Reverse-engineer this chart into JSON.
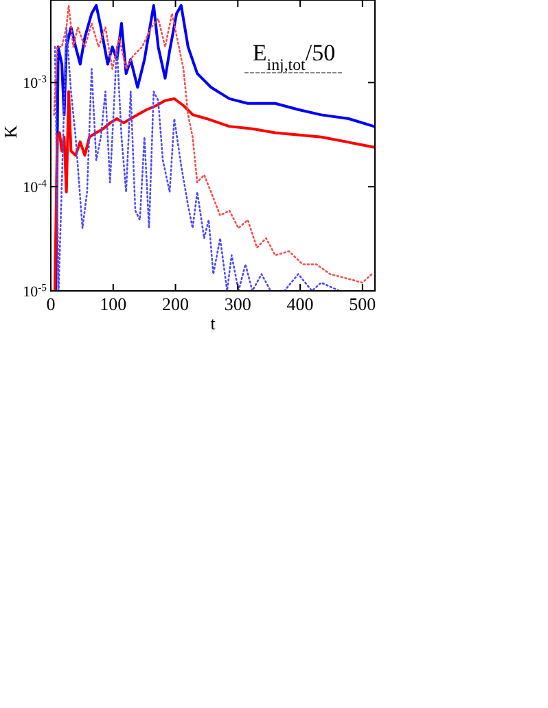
{
  "chart_data": {
    "type": "line",
    "xlabel": "t",
    "ylabel": "K",
    "log": "y",
    "xlim": [
      0,
      520
    ],
    "ylim": [
      1e-05,
      0.0062
    ],
    "xticks": [
      0,
      100,
      200,
      300,
      400,
      500
    ],
    "yticks": [
      {
        "value": 1e-05,
        "label": "10$^{-5}$"
      },
      {
        "value": 0.0001,
        "label": "10$^{-4}$"
      },
      {
        "value": 0.001,
        "label": "10$^{-3}$"
      }
    ],
    "grid": false,
    "annotations": [
      "E$_{inj,tot}$/50"
    ],
    "series": [
      {
        "color": "#0000ff",
        "line_style": "solid",
        "x": [
          8.1,
          11.8,
          17.7,
          21.4,
          25,
          32.4,
          39.8,
          47.1,
          54.5,
          65.5,
          72.9,
          80.3,
          91.3,
          98.7,
          106,
          113.4,
          120.8,
          128.1,
          139.2,
          150.2,
          165,
          172.3,
          183.4,
          190.7,
          201.8,
          209.1,
          220.2,
          234.9,
          257,
          286.5,
          315.9,
          360.1,
          396.9,
          433.7,
          477.9,
          518
        ],
        "values": [
          1e-05,
          0.0022,
          0.0015,
          0.00049,
          0.0022,
          0.0034,
          0.0022,
          0.0015,
          0.0027,
          0.0046,
          0.0055,
          0.0034,
          0.0015,
          0.0022,
          0.00166,
          0.0037,
          0.00122,
          0.00166,
          0.0009,
          0.00166,
          0.0055,
          0.0022,
          0.0011,
          0.00203,
          0.0046,
          0.0055,
          0.0022,
          0.00122,
          0.0009,
          0.0007,
          0.00063,
          0.00063,
          0.00055,
          0.00049,
          0.00045,
          0.00038
        ]
      },
      {
        "color": "#ff0000",
        "line_style": "solid",
        "x": [
          6.6,
          10.3,
          14,
          17.7,
          21.4,
          25,
          28.7,
          32.4,
          39.8,
          47.1,
          54.5,
          61.9,
          72.9,
          84,
          95,
          106,
          117,
          128,
          139,
          154,
          169,
          183,
          198,
          213,
          228,
          250,
          286,
          323,
          360,
          434,
          518
        ],
        "values": [
          1e-05,
          0.0003,
          0.00033,
          0.00022,
          0.0003,
          8.9e-05,
          0.00082,
          0.00022,
          0.0002,
          0.00027,
          0.0002,
          0.0003,
          0.00033,
          0.00036,
          0.00041,
          0.00045,
          0.00041,
          0.00045,
          0.00049,
          0.00055,
          0.0006,
          0.00067,
          0.0007,
          0.0006,
          0.00049,
          0.00045,
          0.00038,
          0.00036,
          0.00033,
          0.0003,
          0.00024
        ]
      },
      {
        "color": "#4a4aff",
        "line_style": "dotted",
        "x": [
          6.6,
          12.5,
          17.7,
          25,
          32.4,
          39.8,
          50.8,
          58.2,
          65.5,
          72.9,
          80.3,
          87.6,
          95,
          106,
          113.4,
          120.8,
          128.1,
          135.5,
          142.9,
          150.2,
          157.6,
          165,
          172.3,
          179.7,
          190.7,
          198.1,
          209.1,
          220.2,
          227.5,
          234.9,
          246,
          253.3,
          260.7,
          271.7,
          282.8,
          290.1,
          301.2,
          312.2,
          323.3,
          338,
          352.7,
          374.8,
          396.9,
          419,
          433.7,
          463.2
        ],
        "values": [
          0.0022,
          1e-05,
          0.00011,
          0.0034,
          0.00082,
          0.0003,
          4e-05,
          8.9e-05,
          0.00135,
          0.00018,
          0.0003,
          0.00082,
          0.00011,
          0.0022,
          0.0003,
          8.9e-05,
          0.00082,
          5.9e-05,
          4.8e-05,
          0.0003,
          4e-05,
          0.00082,
          0.00067,
          0.00018,
          8.9e-05,
          0.00045,
          0.00016,
          6.6e-05,
          4e-05,
          8.9e-05,
          3.2e-05,
          4.8e-05,
          1.45e-05,
          3.2e-05,
          1e-05,
          2.2e-05,
          1e-05,
          1.8e-05,
          1e-05,
          1.45e-05,
          1e-05,
          1e-05,
          1.45e-05,
          1e-05,
          1.2e-05,
          1e-05
        ]
      },
      {
        "color": "#ff4a4a",
        "line_style": "dotted",
        "x": [
          5.2,
          10.3,
          17.7,
          25,
          28.7,
          36,
          43.4,
          54.5,
          65.5,
          76.6,
          87.6,
          98.7,
          109.7,
          120.8,
          131.8,
          146.5,
          161.3,
          172.3,
          183.4,
          194.4,
          205.5,
          212.8,
          220.2,
          227.5,
          234.9,
          246,
          257,
          271.7,
          286.5,
          301,
          316,
          330.6,
          345.4,
          360,
          382,
          404,
          426,
          448,
          478,
          500,
          515,
          518
        ],
        "values": [
          0.00049,
          0.0022,
          0.0022,
          0.0034,
          0.0055,
          0.0022,
          0.0034,
          0.0022,
          0.0037,
          0.0022,
          0.0034,
          0.00135,
          0.0027,
          0.00135,
          0.0018,
          0.0022,
          0.0034,
          0.0041,
          0.0022,
          0.0046,
          0.0022,
          0.00135,
          0.00049,
          0.0003,
          0.00011,
          0.00013,
          8.9e-05,
          5.3e-05,
          5.9e-05,
          4e-05,
          4.8e-05,
          2.6e-05,
          3.2e-05,
          2.2e-05,
          2.4e-05,
          1.8e-05,
          1.8e-05,
          1.45e-05,
          1.3e-05,
          1.2e-05,
          1.45e-05,
          1.45e-05
        ]
      }
    ]
  }
}
